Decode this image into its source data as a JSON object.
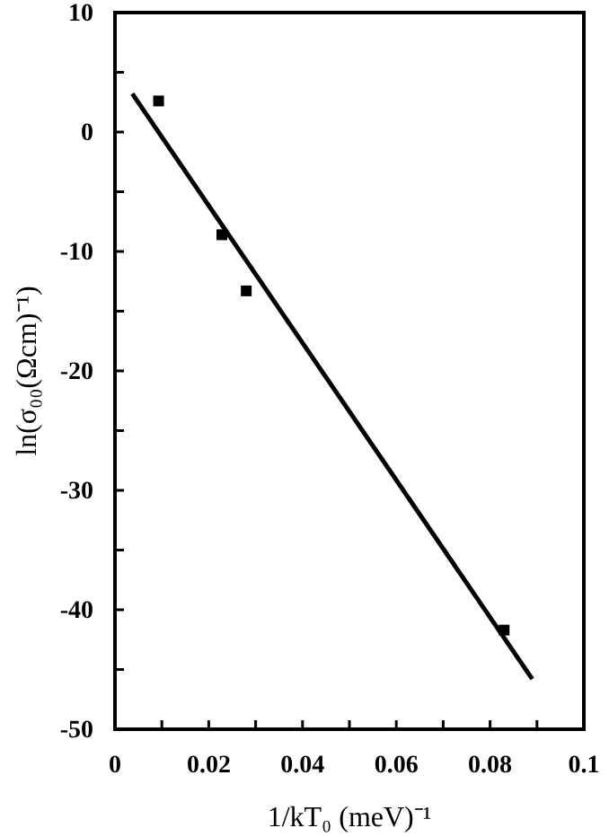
{
  "chart_data": {
    "type": "scatter",
    "xlabel": "1/kT₀ (meV)⁻¹",
    "ylabel": "ln(σ₀₀(Ωcm)⁻¹)",
    "xlim": [
      0,
      0.1
    ],
    "ylim": [
      -50,
      10
    ],
    "xticks": [
      0,
      {
        "value": 0.01,
        "label": null
      },
      0.02,
      {
        "value": 0.03,
        "label": null
      },
      0.04,
      {
        "value": 0.05,
        "label": null
      },
      0.06,
      {
        "value": 0.07,
        "label": null
      },
      0.08,
      {
        "value": 0.09,
        "label": null
      },
      0.1
    ],
    "yticks": [
      -50,
      {
        "value": -45,
        "label": null
      },
      -40,
      {
        "value": -35,
        "label": null
      },
      -30,
      {
        "value": -25,
        "label": null
      },
      -20,
      {
        "value": -15,
        "label": null
      },
      -10,
      {
        "value": -5,
        "label": null
      },
      0,
      {
        "value": 5,
        "label": null
      },
      10
    ],
    "grid": false,
    "series": [
      {
        "marker": "square",
        "color": "#000000",
        "x": [
          0.0093,
          0.0228,
          0.028,
          0.083
        ],
        "values": [
          2.6,
          -8.6,
          -13.3,
          -41.7
        ]
      },
      {
        "type": "line",
        "marker": "none",
        "color": "#000000",
        "x": [
          0.0037,
          0.089
        ],
        "values": [
          3.2,
          -45.8
        ]
      }
    ]
  }
}
